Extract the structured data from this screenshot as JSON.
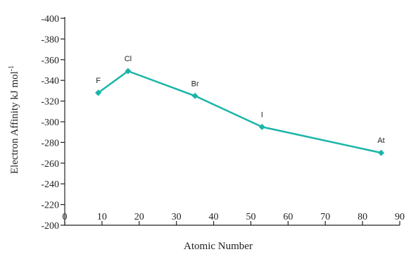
{
  "chart_data": {
    "type": "line",
    "xlabel": "Atomic Number",
    "ylabel_main": "Electron Affinity kJ mol",
    "ylabel_sup": "-1",
    "xlim": [
      0,
      90
    ],
    "ylim": [
      -200,
      -400
    ],
    "xticks": [
      "0",
      "10",
      "20",
      "30",
      "40",
      "50",
      "60",
      "70",
      "80",
      "90"
    ],
    "yticks": [
      "-400",
      "-380",
      "-360",
      "-340",
      "-320",
      "-300",
      "-280",
      "-260",
      "-240",
      "-220",
      "-200"
    ],
    "grid": false,
    "colors": {
      "series": "#1ab5a8",
      "axis": "#222222"
    },
    "series": [
      {
        "points": [
          {
            "label": "F",
            "x": 9,
            "y": -328
          },
          {
            "label": "Cl",
            "x": 17,
            "y": -349
          },
          {
            "label": "Br",
            "x": 35,
            "y": -325
          },
          {
            "label": "I",
            "x": 53,
            "y": -295
          },
          {
            "label": "At",
            "x": 85,
            "y": -270
          }
        ]
      }
    ]
  }
}
